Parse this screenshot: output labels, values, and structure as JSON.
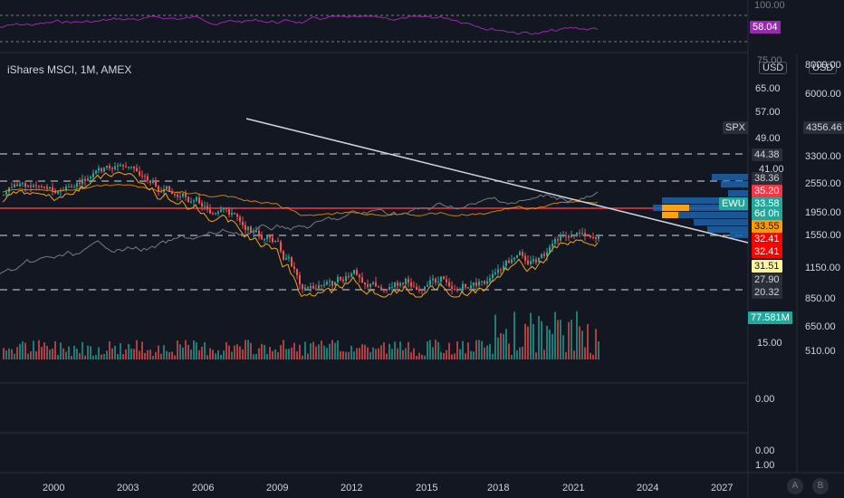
{
  "symbol_title": "iShares MSCI, 1M, AMEX",
  "units": {
    "left": "USD",
    "right": "USD"
  },
  "rsi": {
    "value_tag": "58.04",
    "levels": [
      "100.00",
      "75.00"
    ]
  },
  "left_axis": [
    "65.00",
    "57.00",
    "49.00",
    "41.00",
    "15.00"
  ],
  "right_axis": [
    "8000.00",
    "6000.00",
    "3300.00",
    "2550.00",
    "1950.00",
    "1550.00",
    "1150.00",
    "850.00",
    "650.00",
    "510.00"
  ],
  "lower_axis": [
    "0.00",
    "0.00",
    "1.00"
  ],
  "spx": {
    "label": "SPX",
    "value": "4356.46"
  },
  "price_tags": [
    {
      "text": "44.38",
      "bg": "#2a2e39",
      "fg": "#d1d4dc"
    },
    {
      "text": "38.36",
      "bg": "#2a2e39",
      "fg": "#d1d4dc"
    },
    {
      "text": "35.20",
      "bg": "#f23645",
      "fg": "#ffffff"
    },
    {
      "text": "33.58",
      "bg": "#26a69a",
      "fg": "#ffffff"
    },
    {
      "text": "6d 0h",
      "bg": "#26a69a",
      "fg": "#ffffff"
    },
    {
      "text": "33.55",
      "bg": "#ff9800",
      "fg": "#131722"
    },
    {
      "text": "32.41",
      "bg": "#ff0000",
      "fg": "#ffffff"
    },
    {
      "text": "32.41",
      "bg": "#ff0000",
      "fg": "#ffffff"
    },
    {
      "text": "31.51",
      "bg": "#fff59d",
      "fg": "#131722"
    },
    {
      "text": "27.90",
      "bg": "#2a2e39",
      "fg": "#d1d4dc"
    },
    {
      "text": "20.32",
      "bg": "#2a2e39",
      "fg": "#d1d4dc"
    }
  ],
  "ticker_tag": "EWU",
  "volume_tag": "77.581M",
  "time_axis": [
    "2000",
    "2003",
    "2006",
    "2009",
    "2012",
    "2015",
    "2018",
    "2021",
    "2024",
    "2027"
  ],
  "axis_buttons": [
    "A",
    "B"
  ],
  "colors": {
    "up": "#26a69a",
    "down": "#ef5350",
    "rsi": "#9c27b0",
    "trend": "#d1d4dc",
    "hline": "#f23645"
  }
}
